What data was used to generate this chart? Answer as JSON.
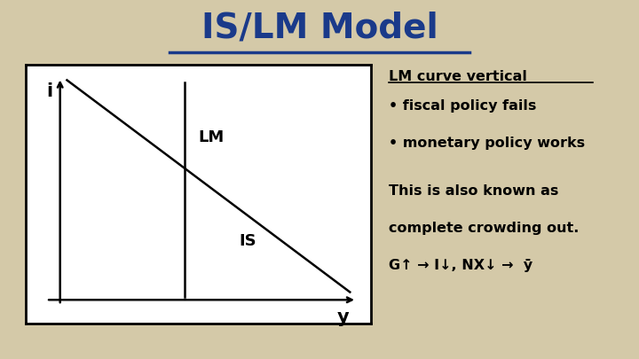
{
  "title": "IS/LM Model",
  "title_color": "#1a3a8a",
  "title_fontsize": 28,
  "background_color": "#d4c9a8",
  "graph_bg_color": "#ffffff",
  "lm_label": "LM",
  "is_label": "IS",
  "i_label": "i",
  "y_label": "y",
  "text_color": "#000000",
  "right_text_1": "LM curve vertical",
  "right_text_2": "• fiscal policy fails",
  "right_text_3": "• monetary policy works",
  "right_text_4": "This is also known as",
  "right_text_5": "complete crowding out.",
  "right_text_6": "G↑ → I↓, NX↓ →  ȳ"
}
